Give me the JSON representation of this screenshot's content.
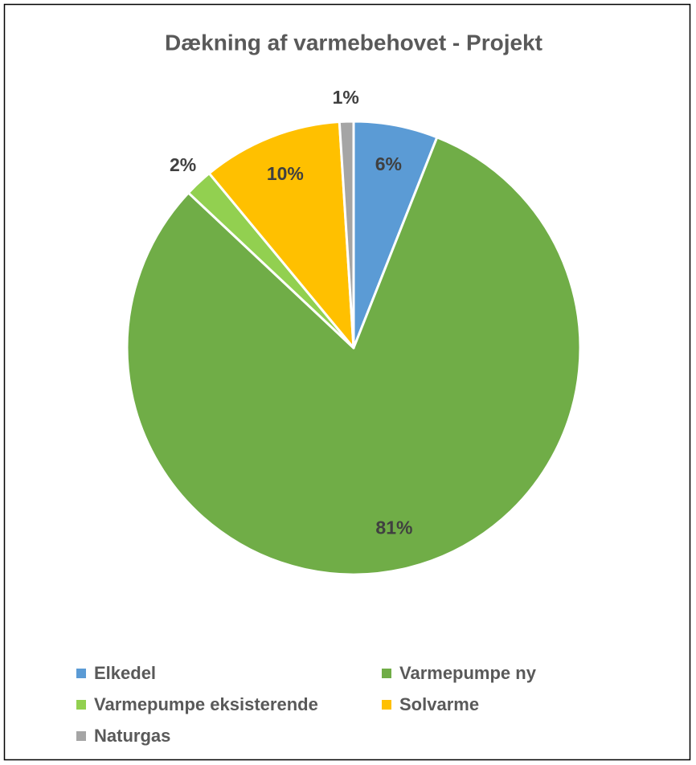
{
  "chart_data": {
    "type": "pie",
    "title": "Dækning af varmebehovet - Projekt",
    "categories": [
      "Elkedel",
      "Varmepumpe ny",
      "Varmepumpe eksisterende",
      "Solvarme",
      "Naturgas"
    ],
    "values": [
      6,
      81,
      2,
      10,
      1
    ],
    "value_labels": [
      "6%",
      "81%",
      "2%",
      "10%",
      "1%"
    ],
    "colors": [
      "#5b9bd5",
      "#70ad47",
      "#92d050",
      "#ffc000",
      "#a5a5a5"
    ],
    "legend": "bottom"
  }
}
